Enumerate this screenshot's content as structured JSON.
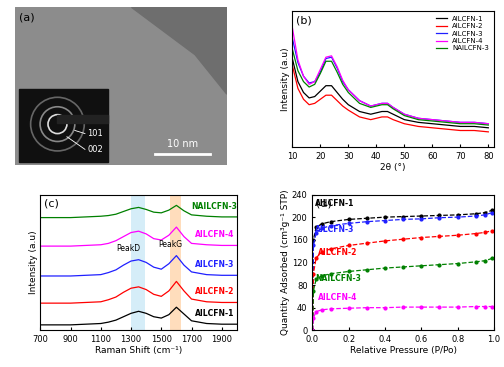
{
  "chart_data": [
    {
      "type": "image",
      "label": "(a)",
      "annotations": [
        "101",
        "002"
      ],
      "scale_bar": "10 nm"
    },
    {
      "type": "line",
      "label": "(b)",
      "x_label": "2θ (°)",
      "y_label": "Intensity (a.u)",
      "x": [
        10,
        12,
        14,
        16,
        18,
        20,
        22,
        24,
        26,
        28,
        30,
        34,
        38,
        42,
        44,
        46,
        50,
        55,
        60,
        65,
        70,
        75,
        80
      ],
      "series": [
        {
          "name": "AILCFN-1",
          "color": "#000000",
          "values": [
            65,
            48,
            40,
            36,
            37,
            41,
            45,
            45,
            40,
            35,
            31,
            26,
            24,
            26,
            26,
            24,
            20,
            18,
            17,
            16,
            15,
            15,
            14
          ]
        },
        {
          "name": "AILCFN-2",
          "color": "#ff0000",
          "values": [
            60,
            43,
            35,
            31,
            32,
            35,
            38,
            38,
            34,
            30,
            27,
            22,
            20,
            22,
            22,
            20,
            17,
            15,
            14,
            13,
            12,
            12,
            11
          ]
        },
        {
          "name": "AILCFN-3",
          "color": "#2020ff",
          "values": [
            80,
            62,
            52,
            47,
            48,
            55,
            65,
            66,
            58,
            48,
            42,
            34,
            30,
            32,
            32,
            29,
            24,
            21,
            20,
            19,
            18,
            18,
            17
          ]
        },
        {
          "name": "AILCFN-4",
          "color": "#ff00ff",
          "values": [
            88,
            64,
            52,
            46,
            48,
            57,
            66,
            67,
            59,
            49,
            42,
            34,
            30,
            32,
            32,
            29,
            24,
            21,
            20,
            19,
            18,
            18,
            17
          ]
        },
        {
          "name": "NAILCFN-3",
          "color": "#008000",
          "values": [
            72,
            56,
            48,
            44,
            46,
            54,
            63,
            63,
            55,
            46,
            40,
            32,
            29,
            31,
            31,
            28,
            23,
            20,
            19,
            18,
            17,
            17,
            16
          ]
        }
      ],
      "xlim": [
        10,
        82
      ],
      "xticks": [
        10,
        20,
        30,
        40,
        50,
        60,
        70,
        80
      ],
      "ylim": [
        0,
        100
      ],
      "tick_labels": "x",
      "legend": "upper right",
      "line_style": "solid"
    },
    {
      "type": "line",
      "label": "(c)",
      "x_label": "Raman Shift (cm⁻¹)",
      "y_label": "Intensity (a.u)",
      "x": [
        700,
        800,
        900,
        1000,
        1100,
        1150,
        1200,
        1250,
        1300,
        1350,
        1400,
        1450,
        1500,
        1550,
        1600,
        1650,
        1700,
        1800,
        1900,
        2000
      ],
      "series": [
        {
          "name": "AILCFN-1",
          "color": "#000000",
          "label_at": [
            1850,
            9
          ],
          "values": [
            4,
            4,
            4,
            4.5,
            5,
            6,
            7.5,
            10,
            12.5,
            14,
            12.5,
            10,
            9,
            11.5,
            17,
            12,
            7,
            5,
            4.5,
            4.5
          ]
        },
        {
          "name": "AILCFN-2",
          "color": "#ff0000",
          "label_at": [
            1850,
            25
          ],
          "values": [
            20,
            20,
            20,
            20.5,
            21,
            22.5,
            24.5,
            28,
            31,
            32,
            30,
            26.5,
            25,
            29,
            36,
            29,
            23,
            21,
            20.5,
            20.5
          ]
        },
        {
          "name": "AILCFN-3",
          "color": "#2020ff",
          "label_at": [
            1850,
            45
          ],
          "values": [
            40,
            40,
            40,
            40.5,
            41,
            42.5,
            44.5,
            48,
            51,
            52,
            50,
            46.5,
            45,
            49,
            55,
            48,
            43,
            41,
            40.5,
            40.5
          ]
        },
        {
          "name": "AILCFN-4",
          "color": "#ff00ff",
          "label_at": [
            1850,
            67
          ],
          "values": [
            62,
            62,
            62,
            62.5,
            63,
            64,
            66,
            69,
            72,
            73,
            71,
            67.5,
            66.5,
            70,
            76,
            69,
            64,
            63,
            62.5,
            62.5
          ]
        },
        {
          "name": "NAILCFN-3",
          "color": "#008000",
          "label_at": [
            1850,
            88
          ],
          "values": [
            83,
            83,
            83,
            83.5,
            84,
            84.5,
            85.5,
            87.5,
            89.5,
            90.5,
            89,
            87,
            86.5,
            88.5,
            92,
            88,
            85,
            84,
            83.5,
            83.5
          ]
        }
      ],
      "highlight_bands": [
        {
          "from": 1300,
          "to": 1390,
          "color": "#87ceeb"
        },
        {
          "from": 1560,
          "to": 1630,
          "color": "#ffa040"
        }
      ],
      "annotations": [
        {
          "text": "PeakD",
          "x": 1280,
          "y": 57
        },
        {
          "text": "PeakG",
          "x": 1560,
          "y": 60
        }
      ],
      "xlim": [
        700,
        2000
      ],
      "xticks": [
        700,
        900,
        1100,
        1300,
        1500,
        1700,
        1900
      ],
      "ylim": [
        0,
        100
      ],
      "tick_labels": "x",
      "line_style": "solid"
    },
    {
      "type": "line",
      "label": "(d)",
      "x_label": "Relative Pressure (P/Po)",
      "y_label": "Quantity Adsorbed (cm³g⁻¹ STP)",
      "x": [
        0,
        0.005,
        0.02,
        0.05,
        0.1,
        0.2,
        0.3,
        0.4,
        0.5,
        0.6,
        0.7,
        0.8,
        0.9,
        0.95,
        0.99
      ],
      "series": [
        {
          "name": "AILCFN-1",
          "color": "#000000",
          "label_at": [
            0.12,
            216
          ],
          "values": [
            0,
            160,
            182,
            188,
            192,
            196,
            198,
            200,
            201,
            202,
            203,
            204,
            206,
            208,
            212
          ]
        },
        {
          "name": "AILCFN-3",
          "color": "#2020ff",
          "label_at": [
            0.12,
            170
          ],
          "values": [
            0,
            150,
            172,
            180,
            185,
            189,
            192,
            194,
            196,
            197,
            199,
            200,
            202,
            204,
            208
          ]
        },
        {
          "name": "AILCFN-2",
          "color": "#ff0000",
          "label_at": [
            0.14,
            130
          ],
          "values": [
            0,
            100,
            128,
            138,
            144,
            150,
            154,
            158,
            161,
            164,
            166,
            168,
            171,
            173,
            176
          ]
        },
        {
          "name": "NAILCFN-3",
          "color": "#008000",
          "label_at": [
            0.14,
            84
          ],
          "values": [
            0,
            70,
            90,
            96,
            100,
            104,
            107,
            110,
            112,
            114,
            116,
            118,
            121,
            123,
            127
          ]
        },
        {
          "name": "AILCFN-4",
          "color": "#ff00ff",
          "label_at": [
            0.14,
            50
          ],
          "values": [
            0,
            22,
            33,
            36,
            38,
            39,
            40,
            40,
            41,
            41,
            41,
            41,
            42,
            42,
            42
          ]
        }
      ],
      "xlim": [
        0,
        1.0
      ],
      "xticks": [
        {
          "value": 0,
          "label": "0.0"
        },
        0.2,
        0.4,
        0.6,
        0.8,
        {
          "value": 1.0,
          "label": "1.0"
        }
      ],
      "ylim": [
        0,
        240
      ],
      "yticks": [
        0,
        40,
        80,
        120,
        160,
        200,
        240
      ],
      "marker": "circle",
      "line_style": "dashed"
    }
  ]
}
